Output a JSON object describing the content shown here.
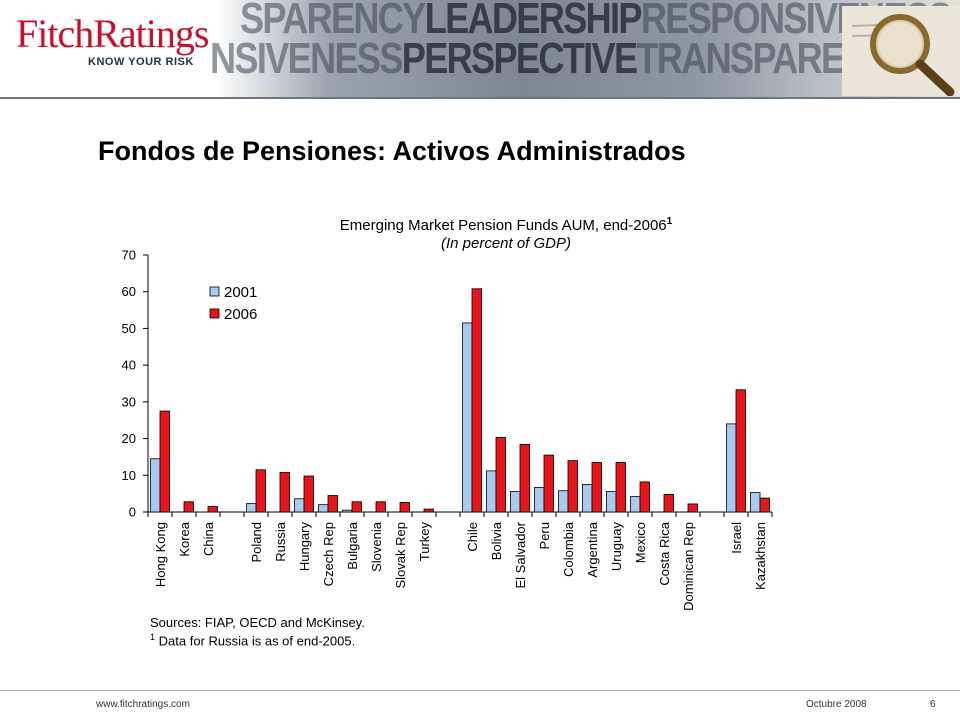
{
  "header": {
    "logo_text": "FitchRatings",
    "tagline": "KNOW YOUR RISK",
    "banner_row1_a": "SPARENCY",
    "banner_row1_b": "LEADERSHIP",
    "banner_row1_c": "RESPONSIVENESS",
    "banner_row2_a": "NSIVENESS",
    "banner_row2_b": "PERSPECTIVE",
    "banner_row2_c": "TRANSPARENCY L"
  },
  "page_title": "Fondos de Pensiones: Activos Administrados",
  "sources": "Sources: FIAP, OECD and McKinsey.",
  "footnote_mark": "1",
  "footnote_text": "Data for Russia is as of end-2005.",
  "footer": {
    "url": "www.fitchratings.com",
    "date": "Octubre 2008",
    "page": "6"
  },
  "colors": {
    "series_2001": "#a6caf0",
    "series_2006": "#e8141a"
  },
  "chart_data": {
    "type": "bar",
    "title": "Emerging Market Pension Funds AUM, end-2006",
    "title_footnote": "1",
    "subtitle": "(In percent of GDP)",
    "ylim": [
      0,
      70
    ],
    "yticks": [
      0,
      10,
      20,
      30,
      40,
      50,
      60,
      70
    ],
    "legend_position": "top-left",
    "grid": false,
    "categories": [
      "Hong Kong",
      "Korea",
      "China",
      "",
      "Poland",
      "Russia",
      "Hungary",
      "Czech Rep",
      "Bulgaria",
      "Slovenia",
      "Slovak Rep",
      "Turkey",
      "",
      "Chile",
      "Bolivia",
      "El Salvador",
      "Peru",
      "Colombia",
      "Argentina",
      "Uruguay",
      "Mexico",
      "Costa Rica",
      "Dominican Rep",
      "",
      "Israel",
      "Kazakhstan"
    ],
    "series": [
      {
        "name": "2001",
        "values": [
          14.5,
          0,
          0,
          null,
          2.3,
          0,
          3.6,
          2.0,
          0.5,
          0,
          0,
          0,
          null,
          51.5,
          11.2,
          5.6,
          6.7,
          5.8,
          7.5,
          5.6,
          4.2,
          0,
          0,
          null,
          24.0,
          5.3
        ]
      },
      {
        "name": "2006",
        "values": [
          27.5,
          2.8,
          1.5,
          null,
          11.5,
          10.8,
          9.8,
          4.5,
          2.8,
          2.8,
          2.6,
          0.8,
          null,
          60.8,
          20.3,
          18.4,
          15.5,
          14.0,
          13.5,
          13.5,
          8.2,
          4.8,
          2.2,
          null,
          33.3,
          3.8
        ]
      }
    ]
  }
}
